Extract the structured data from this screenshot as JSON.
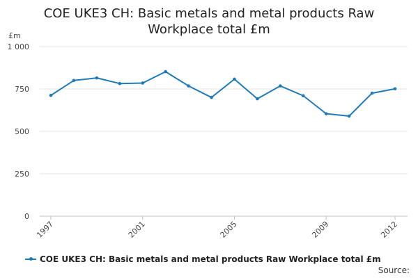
{
  "chart_data": {
    "type": "line",
    "title_lines": [
      "COE UKE3 CH: Basic metals and metal products Raw",
      "Workplace total £m"
    ],
    "ylabel": "£m",
    "ylim": [
      0,
      1000
    ],
    "yticks": [
      0,
      250,
      500,
      750,
      1000
    ],
    "ytick_labels": [
      "0",
      "250",
      "500",
      "750",
      "1 000"
    ],
    "x": [
      1997,
      1998,
      1999,
      2000,
      2001,
      2002,
      2003,
      2004,
      2005,
      2006,
      2007,
      2008,
      2009,
      2010,
      2011,
      2012
    ],
    "xtick_labels": [
      "1997",
      "2001",
      "2005",
      "2009",
      "2012"
    ],
    "series": [
      {
        "name": "COE UKE3 CH: Basic metals and metal products Raw Workplace total £m",
        "color": "#1f7ab8",
        "values": [
          712,
          800,
          815,
          782,
          785,
          852,
          768,
          700,
          808,
          692,
          768,
          710,
          604,
          590,
          725,
          751
        ]
      }
    ],
    "grid": "horizontal",
    "legend_position": "bottom"
  },
  "footer": {
    "source_label": "Source:"
  }
}
